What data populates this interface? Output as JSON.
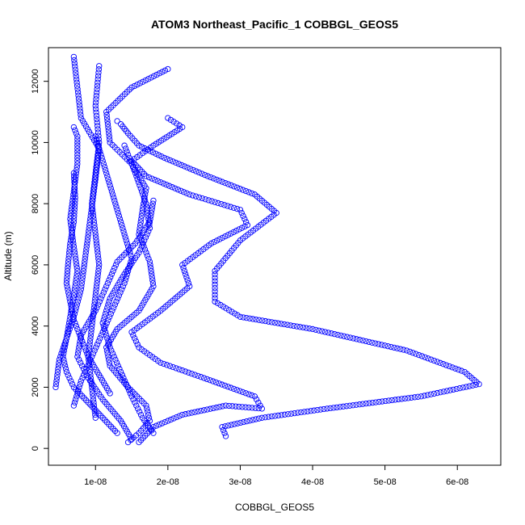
{
  "chart_data": {
    "type": "scatter",
    "title": "ATOM3 Northeast_Pacific_1 COBBGL_GEOS5",
    "xlabel": "COBBGL_GEOS5",
    "ylabel": "Altitude (m)",
    "xlim": [
      3.5e-09,
      6.6e-08
    ],
    "ylim": [
      -550,
      13100
    ],
    "x_ticks": [
      {
        "value": 1e-08,
        "label": "1e-08"
      },
      {
        "value": 2e-08,
        "label": "2e-08"
      },
      {
        "value": 3e-08,
        "label": "3e-08"
      },
      {
        "value": 4e-08,
        "label": "4e-08"
      },
      {
        "value": 5e-08,
        "label": "5e-08"
      },
      {
        "value": 6e-08,
        "label": "6e-08"
      }
    ],
    "y_ticks": [
      {
        "value": 0,
        "label": "0"
      },
      {
        "value": 2000,
        "label": "2000"
      },
      {
        "value": 4000,
        "label": "4000"
      },
      {
        "value": 6000,
        "label": "6000"
      },
      {
        "value": 8000,
        "label": "8000"
      },
      {
        "value": 10000,
        "label": "10000"
      },
      {
        "value": 12000,
        "label": "12000"
      }
    ],
    "color": "#0000ff",
    "marker": "open-circle",
    "grid": false,
    "series": [
      {
        "x": [
          2.8e-08,
          2.75e-08,
          3.3e-08,
          4.2e-08,
          5.5e-08,
          6.3e-08,
          6.1e-08,
          5.3e-08,
          4e-08,
          3e-08,
          2.65e-08,
          2.65e-08,
          3e-08,
          3.5e-08,
          3.2e-08,
          2.55e-08,
          1.95e-08,
          1.6e-08,
          1.45e-08,
          1.35e-08,
          1.3e-08
        ],
        "y": [
          400,
          700,
          1000,
          1300,
          1700,
          2100,
          2500,
          3200,
          3900,
          4300,
          4800,
          5800,
          6800,
          7700,
          8300,
          8900,
          9500,
          9900,
          10300,
          10600,
          10700
        ]
      },
      {
        "x": [
          1.6e-08,
          1.8e-08,
          2.2e-08,
          2.8e-08,
          3.3e-08,
          3.2e-08,
          2.5e-08,
          1.9e-08,
          1.6e-08,
          1.5e-08,
          1.9e-08,
          2.3e-08,
          2.2e-08,
          2.6e-08,
          3.1e-08,
          3e-08,
          2.3e-08,
          1.7e-08,
          1.5e-08,
          1.8e-08,
          2.2e-08,
          2e-08
        ],
        "y": [
          200,
          700,
          1100,
          1400,
          1300,
          1700,
          2300,
          2800,
          3300,
          3800,
          4500,
          5300,
          6000,
          6700,
          7300,
          7800,
          8300,
          8900,
          9400,
          9900,
          10500,
          10800
        ]
      },
      {
        "x": [
          1.45e-08,
          1.6e-08,
          1.75e-08,
          1.7e-08,
          1.45e-08,
          1.2e-08,
          1.15e-08,
          1.3e-08,
          1.6e-08,
          1.8e-08,
          1.75e-08,
          1.6e-08,
          1.65e-08,
          1.7e-08,
          1.5e-08,
          1.2e-08,
          1.15e-08,
          1.5e-08,
          2e-08
        ],
        "y": [
          200,
          500,
          900,
          1400,
          2000,
          2700,
          3300,
          3900,
          4500,
          5300,
          6100,
          7000,
          7800,
          8500,
          9300,
          10000,
          11000,
          11800,
          12400
        ]
      },
      {
        "x": [
          1.5e-08,
          1.35e-08,
          1.1e-08,
          9e-09,
          7.5e-09,
          8e-09,
          1e-08,
          1.15e-08,
          1.3e-08,
          1.55e-08,
          1.75e-08,
          1.8e-08
        ],
        "y": [
          300,
          900,
          1600,
          2300,
          3000,
          3700,
          4500,
          5300,
          6100,
          6700,
          7400,
          8100
        ]
      },
      {
        "x": [
          1.3e-08,
          1.1e-08,
          9e-09,
          7e-09,
          6e-09,
          5.5e-09,
          6e-09,
          7e-09,
          8e-09,
          8.5e-09,
          9e-09,
          9.5e-09,
          1e-08,
          1.05e-08,
          8e-09,
          7e-09
        ],
        "y": [
          500,
          1000,
          1500,
          2000,
          2500,
          3000,
          3600,
          4300,
          5200,
          6100,
          7000,
          7900,
          8800,
          9800,
          10800,
          12800
        ]
      },
      {
        "x": [
          4.5e-09,
          5e-09,
          6e-09,
          6.5e-09,
          7e-09,
          7.5e-09,
          7e-09,
          6.5e-09,
          7e-09,
          7.5e-09,
          7.5e-09,
          7e-09
        ],
        "y": [
          2000,
          2900,
          3600,
          4300,
          5000,
          5800,
          6600,
          7500,
          8400,
          9300,
          10200,
          10500
        ]
      },
      {
        "x": [
          1e-08,
          9.5e-09,
          9e-09,
          9.5e-09,
          1e-08,
          1.05e-08,
          1e-08,
          9.5e-09,
          1e-08,
          1.05e-08,
          1e-08,
          1.05e-08
        ],
        "y": [
          1000,
          2000,
          3000,
          4000,
          5000,
          6000,
          7000,
          8000,
          9000,
          10000,
          11200,
          12500
        ]
      },
      {
        "x": [
          1.8e-08,
          1.65e-08,
          1.5e-08,
          1.35e-08,
          1.2e-08,
          1.1e-08,
          1.2e-08,
          1.4e-08,
          1.6e-08,
          1.75e-08,
          1.7e-08,
          1.55e-08,
          1.4e-08
        ],
        "y": [
          500,
          1000,
          1700,
          2500,
          3300,
          4100,
          4900,
          5700,
          6400,
          7200,
          8000,
          9000,
          9900
        ]
      },
      {
        "x": [
          7e-09,
          8e-09,
          9.5e-09,
          1.1e-08,
          1.25e-08,
          1.4e-08,
          1.5e-08,
          1.4e-08,
          1.3e-08,
          1.2e-08,
          1.1e-08,
          1e-08
        ],
        "y": [
          1400,
          2200,
          3000,
          3800,
          4600,
          5400,
          6200,
          7000,
          7800,
          8600,
          9400,
          10200
        ]
      },
      {
        "x": [
          1.2e-08,
          1.05e-08,
          9e-09,
          8e-09,
          7e-09,
          6.5e-09,
          6e-09,
          6.2e-09,
          6.5e-09,
          7e-09,
          7.2e-09,
          7e-09
        ],
        "y": [
          1800,
          2400,
          3000,
          3600,
          4200,
          4800,
          5400,
          6000,
          6700,
          7400,
          8200,
          9000
        ]
      }
    ]
  }
}
